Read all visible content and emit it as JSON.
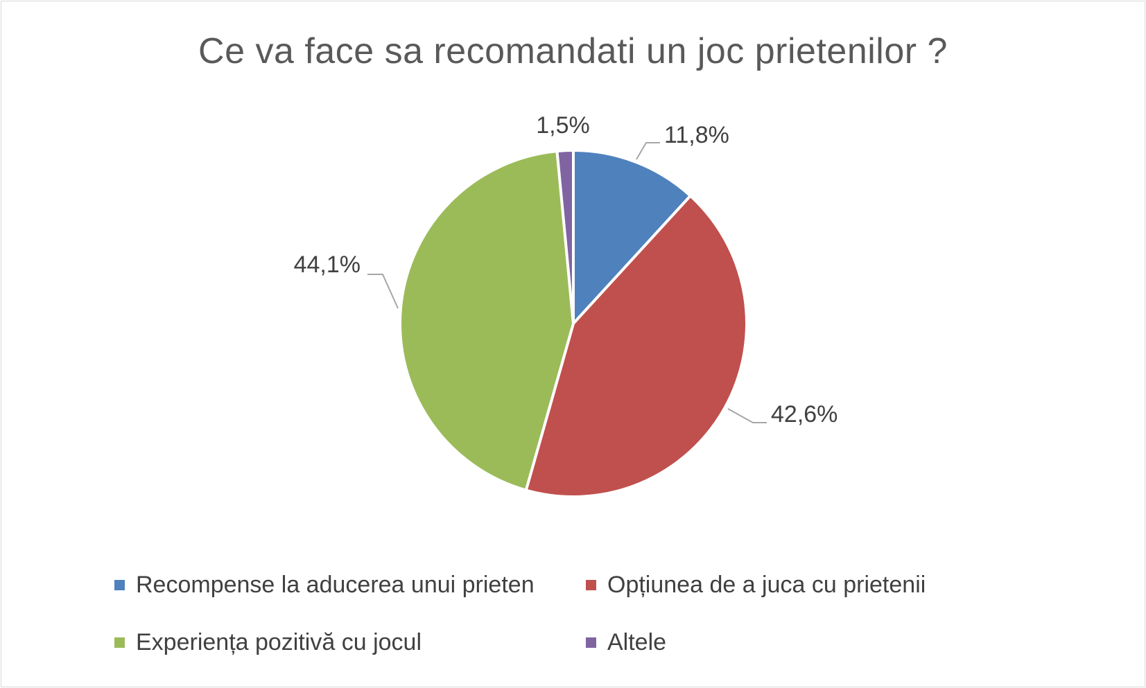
{
  "chart_data": {
    "type": "pie",
    "title": "Ce va face sa recomandati un joc prietenilor ?",
    "categories": [
      "Recompense la aducerea unui prieten",
      "Opțiunea de a juca cu prietenii",
      "Experiența pozitivă cu jocul",
      "Altele"
    ],
    "values": [
      11.8,
      42.6,
      44.1,
      1.5
    ],
    "data_labels": [
      "11,8%",
      "42,6%",
      "44,1%",
      "1,5%"
    ],
    "colors": [
      "#4f81bd",
      "#c0504d",
      "#9bbb59",
      "#8064a2"
    ],
    "legend_position": "bottom",
    "start_angle": "12 o'clock, clockwise"
  }
}
